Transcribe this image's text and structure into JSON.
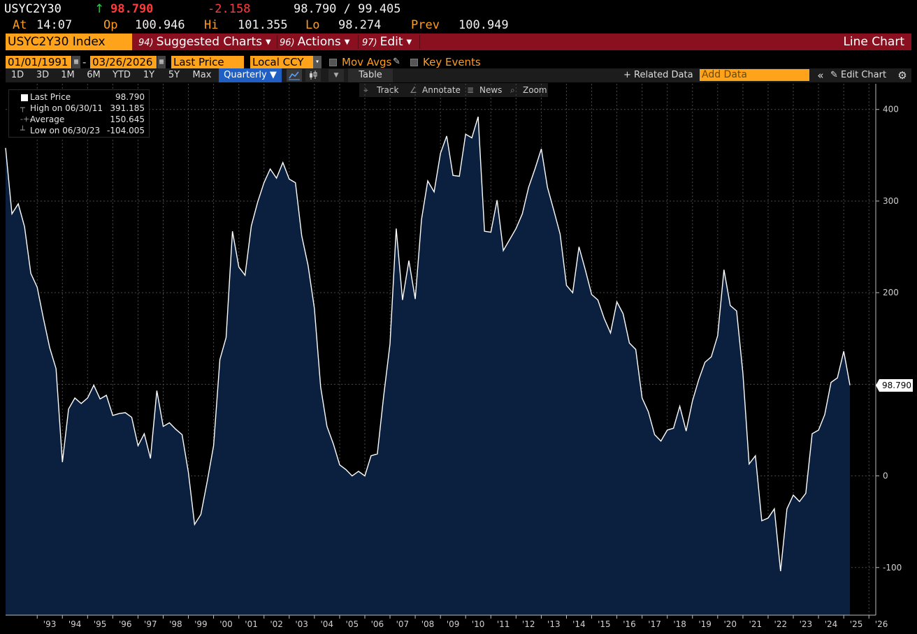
{
  "header": {
    "ticker": "USYC2Y30",
    "last": "98.790",
    "change": "-2.158",
    "bid_ask": "98.790 / 99.405",
    "at_label": "At",
    "time": "14:07",
    "open_label": "Op",
    "open": "100.946",
    "high_label": "Hi",
    "high": "101.355",
    "low_label": "Lo",
    "low": "98.274",
    "prev_label": "Prev",
    "prev": "100.949"
  },
  "menu": {
    "security": "USYC2Y30 Index",
    "suggested_num": "94)",
    "suggested": "Suggested Charts",
    "actions_num": "96)",
    "actions": "Actions",
    "edit_num": "97)",
    "edit": "Edit",
    "chart_type": "Line Chart"
  },
  "controls": {
    "start_date": "01/01/1991",
    "dash": "-",
    "end_date": "03/26/2026",
    "field": "Last Price",
    "currency": "Local CCY",
    "mov_avgs": "Mov Avgs",
    "key_events": "Key Events"
  },
  "range": {
    "buttons": [
      "1D",
      "3D",
      "1M",
      "6M",
      "YTD",
      "1Y",
      "5Y",
      "Max"
    ],
    "frequency": "Quarterly",
    "table": "Table",
    "related": "Related Data",
    "add_data_placeholder": "Add Data",
    "edit_chart": "Edit Chart"
  },
  "toolbar": {
    "track": "Track",
    "annotate": "Annotate",
    "news": "News",
    "zoom": "Zoom"
  },
  "legend": {
    "last_label": "Last Price",
    "last_value": "98.790",
    "high_label": "High on 06/30/11",
    "high_value": "391.185",
    "avg_label": "Average",
    "avg_value": "150.645",
    "low_label": "Low on 06/30/23",
    "low_value": "-104.005"
  },
  "colors": {
    "line": "#ffffff",
    "fill": "#0b1f3f",
    "accent": "#ffa31a",
    "menubar": "#8a1020"
  },
  "chart_data": {
    "type": "area",
    "frequency": "Quarterly",
    "x_start": "1991-10-01",
    "x_step_months": 3,
    "values": [
      358,
      286,
      297,
      272,
      221,
      206,
      172,
      140,
      117,
      15,
      73,
      85,
      79,
      85,
      99,
      84,
      88,
      66,
      68,
      69,
      64,
      33,
      46,
      19,
      93,
      54,
      58,
      51,
      45,
      4,
      -53,
      -42,
      -6,
      33,
      127,
      151,
      267,
      228,
      219,
      273,
      299,
      320,
      335,
      325,
      342,
      324,
      320,
      262,
      230,
      183,
      97,
      54,
      35,
      12,
      7,
      0,
      5,
      0,
      22,
      24,
      87,
      144,
      270,
      192,
      235,
      193,
      280,
      322,
      310,
      352,
      371,
      328,
      327,
      373,
      369,
      392,
      267,
      266,
      301,
      246,
      258,
      270,
      286,
      315,
      335,
      357,
      315,
      290,
      264,
      208,
      200,
      250,
      225,
      198,
      192,
      172,
      156,
      190,
      177,
      145,
      138,
      85,
      70,
      45,
      38,
      50,
      52,
      76,
      49,
      82,
      105,
      124,
      130,
      153,
      225,
      186,
      180,
      112,
      13,
      22,
      -49,
      -46,
      -36,
      -104,
      -36,
      -21,
      -28,
      -19,
      46,
      50,
      67,
      102,
      107,
      136,
      99
    ],
    "last_value": 98.79,
    "x_tick_labels": [
      "'93",
      "'94",
      "'95",
      "'96",
      "'97",
      "'98",
      "'99",
      "'00",
      "'01",
      "'02",
      "'03",
      "'04",
      "'05",
      "'06",
      "'07",
      "'08",
      "'09",
      "'10",
      "'11",
      "'12",
      "'13",
      "'14",
      "'15",
      "'16",
      "'17",
      "'18",
      "'19",
      "'20",
      "'21",
      "'22",
      "'23",
      "'24",
      "'25",
      "'26"
    ],
    "y_ticks": [
      400,
      300,
      200,
      100,
      0,
      -100
    ],
    "y_tick_labels": [
      "400",
      "300",
      "200",
      "",
      "0",
      "-100"
    ],
    "ylim": [
      -152,
      428
    ],
    "last_label": "98.790",
    "grid": true,
    "legend_position": "top-left"
  }
}
